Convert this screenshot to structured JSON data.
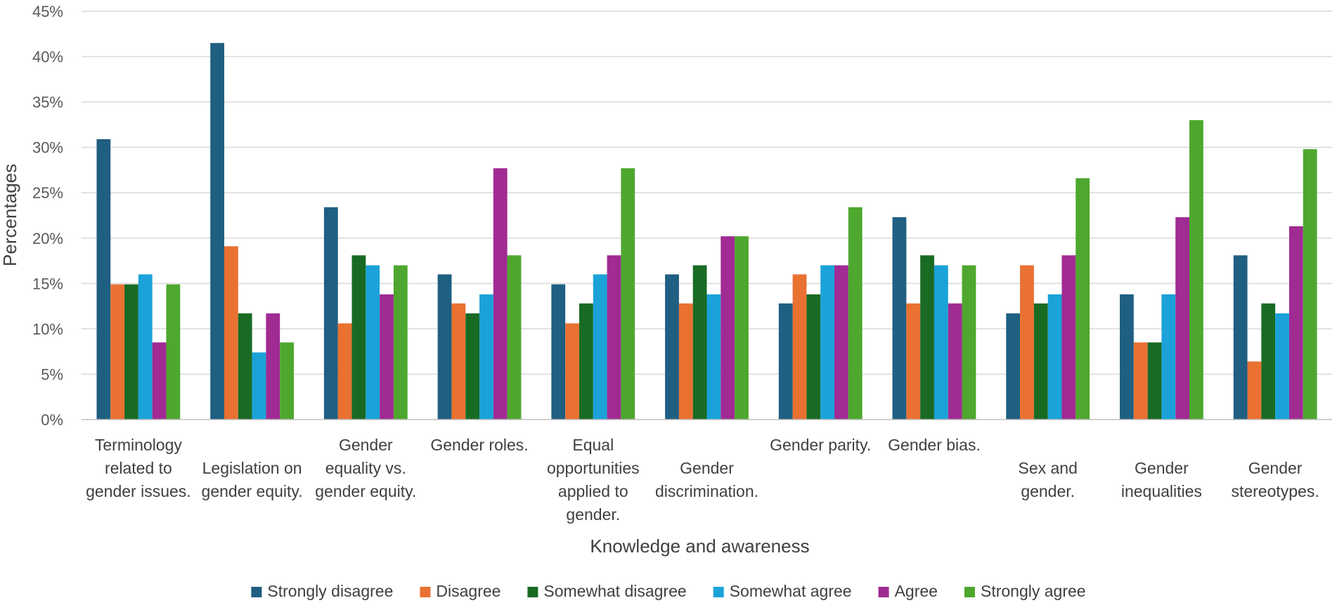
{
  "chart_data": {
    "type": "bar",
    "title": "",
    "xlabel": "Knowledge and awareness",
    "ylabel": "Percentages",
    "ylim": [
      0,
      45
    ],
    "yticks": [
      0,
      5,
      10,
      15,
      20,
      25,
      30,
      35,
      40,
      45
    ],
    "ytick_labels": [
      "0%",
      "5%",
      "10%",
      "15%",
      "20%",
      "25%",
      "30%",
      "35%",
      "40%",
      "45%"
    ],
    "grid": true,
    "legend_position": "bottom",
    "categories": [
      "Terminology related to gender issues.",
      "Legislation on gender equity.",
      "Gender equality vs. gender equity.",
      "Gender roles.",
      "Equal opportunities applied to gender.",
      "Gender discrimination.",
      "Gender parity.",
      "Gender bias.",
      "Sex and gender.",
      "Gender inequalities",
      "Gender stereotypes."
    ],
    "category_lines": [
      [
        "Terminology",
        "related to",
        "gender issues."
      ],
      [
        "Legislation on",
        "gender equity."
      ],
      [
        "Gender",
        "equality vs.",
        "gender equity."
      ],
      [
        "Gender roles."
      ],
      [
        "Equal",
        "opportunities",
        "applied to",
        "gender."
      ],
      [
        "Gender",
        "discrimination."
      ],
      [
        "Gender parity."
      ],
      [
        "Gender bias."
      ],
      [
        "Sex and",
        "gender."
      ],
      [
        "Gender",
        "inequalities"
      ],
      [
        "Gender",
        "stereotypes."
      ]
    ],
    "series": [
      {
        "name": "Strongly disagree",
        "color": "#1f5f82",
        "values": [
          30.9,
          41.5,
          23.4,
          16.0,
          14.9,
          16.0,
          12.8,
          22.3,
          11.7,
          13.8,
          18.1
        ]
      },
      {
        "name": "Disagree",
        "color": "#e97132",
        "values": [
          14.9,
          19.1,
          10.6,
          12.8,
          10.6,
          12.8,
          16.0,
          12.8,
          17.0,
          8.5,
          6.4
        ]
      },
      {
        "name": "Somewhat disagree",
        "color": "#196b24",
        "values": [
          14.9,
          11.7,
          18.1,
          11.7,
          12.8,
          17.0,
          13.8,
          18.1,
          12.8,
          8.5,
          12.8
        ]
      },
      {
        "name": "Somewhat agree",
        "color": "#1aa2d9",
        "values": [
          16.0,
          7.4,
          17.0,
          13.8,
          16.0,
          13.8,
          17.0,
          17.0,
          13.8,
          13.8,
          11.7
        ]
      },
      {
        "name": "Agree",
        "color": "#a02b93",
        "values": [
          8.5,
          11.7,
          13.8,
          27.7,
          18.1,
          20.2,
          17.0,
          12.8,
          18.1,
          22.3,
          21.3
        ]
      },
      {
        "name": "Strongly agree",
        "color": "#4ea72e",
        "values": [
          14.9,
          8.5,
          17.0,
          18.1,
          27.7,
          20.2,
          23.4,
          17.0,
          26.6,
          33.0,
          29.8
        ]
      }
    ]
  }
}
